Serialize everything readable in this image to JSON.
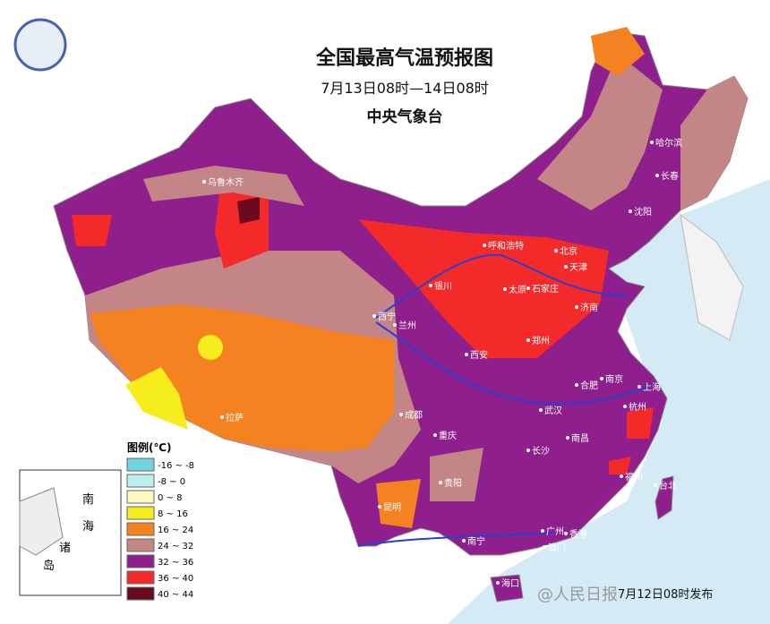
{
  "header": {
    "title": "全国最高气温预报图",
    "subtitle": "7月13日08时—14日08时",
    "agency": "中央气象台"
  },
  "legend": {
    "title": "图例(℃)",
    "items": [
      {
        "label": "-16 ~ -8",
        "color": "#6fd3e0"
      },
      {
        "label": "-8 ~ 0",
        "color": "#bdeef0"
      },
      {
        "label": "0 ~ 8",
        "color": "#fbf8c0"
      },
      {
        "label": "8 ~ 16",
        "color": "#f6ee1c"
      },
      {
        "label": "16 ~ 24",
        "color": "#f58220"
      },
      {
        "label": "24 ~ 32",
        "color": "#c48586"
      },
      {
        "label": "32 ~ 36",
        "color": "#8e1f8c"
      },
      {
        "label": "36 ~ 40",
        "color": "#f42a2a"
      },
      {
        "label": "40 ~ 44",
        "color": "#6b0a1e"
      }
    ]
  },
  "cities": [
    "乌鲁木齐",
    "哈尔滨",
    "长春",
    "沈阳",
    "呼和浩特",
    "北京",
    "天津",
    "银川",
    "太原",
    "石家庄",
    "济南",
    "西宁",
    "兰州",
    "郑州",
    "西安",
    "合肥",
    "南京",
    "上海",
    "拉萨",
    "成都",
    "武汉",
    "杭州",
    "重庆",
    "长沙",
    "南昌",
    "福州",
    "台北",
    "贵阳",
    "昆明",
    "南宁",
    "广州",
    "香港",
    "澳门",
    "海口"
  ],
  "inset": {
    "labels": [
      "南",
      "海",
      "诸",
      "岛"
    ]
  },
  "footer": {
    "issued": "7月12日08时发布",
    "watermark": "@人民日报"
  }
}
